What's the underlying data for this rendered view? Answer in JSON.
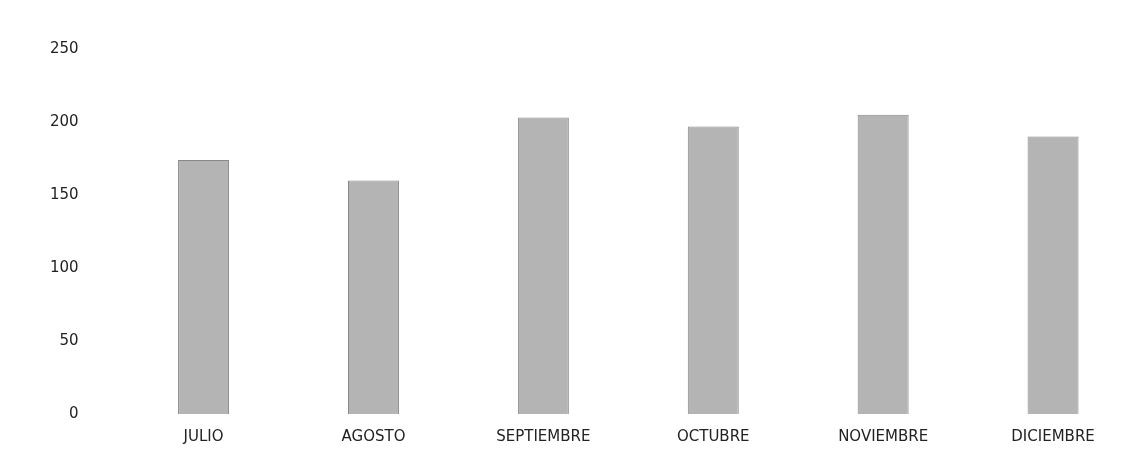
{
  "chart_data": {
    "type": "bar",
    "categories": [
      "JULIO",
      "AGOSTO",
      "SEPTIEMBRE",
      "OCTUBRE",
      "NOVIEMBRE",
      "DICIEMBRE"
    ],
    "values": [
      174,
      160,
      203,
      197,
      205,
      190
    ],
    "color": "#b4b4b4",
    "ylim": [
      0,
      250
    ],
    "yticks": [
      0,
      50,
      100,
      150,
      200,
      250
    ],
    "grid": false,
    "legend": false
  }
}
